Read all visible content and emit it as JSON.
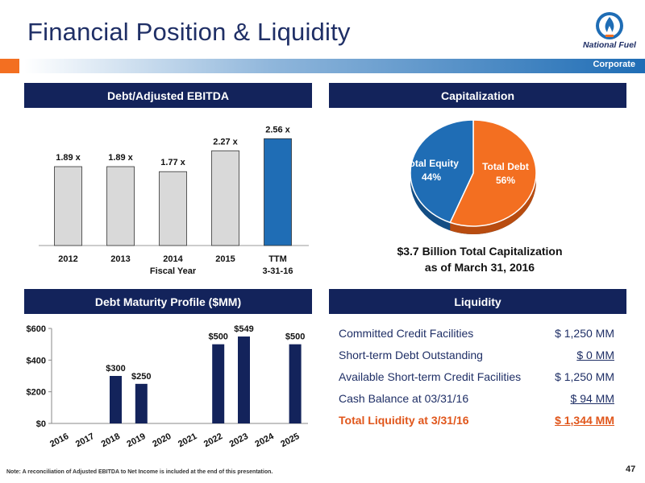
{
  "header": {
    "title": "Financial Position & Liquidity",
    "section_label": "Corporate",
    "logo_text": "National Fuel",
    "colors": {
      "navy": "#13235b",
      "orange": "#f36f21",
      "blue": "#1f6db5"
    }
  },
  "panels": {
    "ebitda": "Debt/Adjusted EBITDA",
    "capitalization": "Capitalization",
    "maturity": "Debt Maturity Profile ($MM)",
    "liquidity": "Liquidity"
  },
  "chart_data": [
    {
      "type": "bar",
      "title": "Debt/Adjusted EBITDA",
      "categories": [
        "2012",
        "2013",
        "2014",
        "2015",
        "TTM"
      ],
      "category_sublabels": [
        "",
        "",
        "Fiscal Year",
        "",
        "3-31-16"
      ],
      "values": [
        1.89,
        1.89,
        1.77,
        2.27,
        2.56
      ],
      "data_labels": [
        "1.89 x",
        "1.89 x",
        "1.77 x",
        "2.27 x",
        "2.56 x"
      ],
      "bar_colors": [
        "#d9d9d9",
        "#d9d9d9",
        "#d9d9d9",
        "#d9d9d9",
        "#1f6db5"
      ],
      "ylim": [
        0,
        2.7
      ]
    },
    {
      "type": "pie",
      "title": "Capitalization",
      "slices": [
        {
          "label": "Total Debt",
          "value": 56,
          "display": "56%",
          "color": "#f36f21"
        },
        {
          "label": "Total Equity",
          "value": 44,
          "display": "44%",
          "color": "#1f6db5"
        }
      ],
      "caption_line1": "$3.7 Billion Total Capitalization",
      "caption_line2": "as of March 31, 2016"
    },
    {
      "type": "bar",
      "title": "Debt Maturity Profile ($MM)",
      "categories": [
        "2016",
        "2017",
        "2018",
        "2019",
        "2020",
        "2021",
        "2022",
        "2023",
        "2024",
        "2025"
      ],
      "values": [
        0,
        0,
        300,
        250,
        0,
        0,
        500,
        549,
        0,
        500
      ],
      "data_labels": [
        "",
        "",
        "$300",
        "$250",
        "",
        "",
        "$500",
        "$549",
        "",
        "$500"
      ],
      "yticks": [
        "$0",
        "$200",
        "$400",
        "$600"
      ],
      "ytick_values": [
        0,
        200,
        400,
        600
      ],
      "ylim": [
        0,
        600
      ],
      "bar_color": "#13235b"
    }
  ],
  "liquidity": {
    "rows": [
      {
        "label": "Committed Credit Facilities",
        "value": "$ 1,250 MM",
        "underline": false,
        "total": false
      },
      {
        "label": "Short-term Debt Outstanding",
        "value": "$ 0 MM",
        "underline": true,
        "total": false
      },
      {
        "label": "Available Short-term Credit Facilities",
        "value": "$ 1,250 MM",
        "underline": false,
        "total": false
      },
      {
        "label": "Cash Balance at 03/31/16",
        "value": "$ 94 MM",
        "underline": true,
        "total": false
      },
      {
        "label": "Total Liquidity at 3/31/16",
        "value": "$ 1,344 MM",
        "underline": true,
        "total": true
      }
    ]
  },
  "footer": {
    "note": "Note: A reconciliation of Adjusted EBITDA to Net Income is included at the end of this presentation.",
    "page_number": "47"
  }
}
